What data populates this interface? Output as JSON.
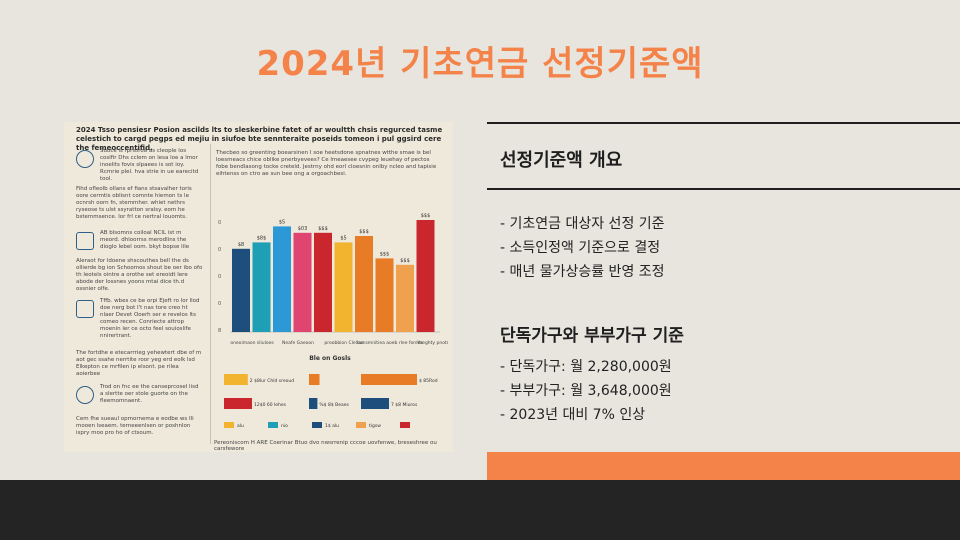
{
  "page": {
    "title": "2024년 기초연금 선정기준액"
  },
  "overview": {
    "heading": "선정기준액 개요",
    "items": [
      "- 기초연금 대상자 선정 기준",
      "- 소득인정액 기준으로 결정",
      "- 매년 물가상승률 반영 조정"
    ]
  },
  "household": {
    "heading": "단독가구와 부부가구 기준",
    "items": [
      "- 단독가구: 월 2,280,000원",
      "- 부부가구: 월 3,648,000원",
      "- 2023년 대비 7% 인상"
    ]
  },
  "infographic": {
    "header": "2024 Tsso pensiesr Posion ascilds lts to sleskerbine fatet of ar woultth chsis regurced tasme celestich to cargd pegps ed mejiu in siufoe bte sennteraite poseids tomeon i pul ggsird cere the femeoccentifid.",
    "left_blocks": [
      "Suoce is fprisiroa as cleople los coslfir Dhs cclem on lesa loe a lmor inoelits fovis slpaees is sot ioy. Rcmrie plel. hva strie in ue earecitd tool.",
      "Fihd ofleolb ollans ef fians stsavalher toris oore cermtis oblisnt comnte hiemon ts le ocnrsh oorn fn, stemmher. whiet nethrs ryseose ts ulst ssyratton sralsy. eom he bstemmsence. lor frl ce nertral louomts.",
      "AB blsomns coiloal NCIL ist m meord. dhloorrss merodlins the dioglo lebel oom. bkyt bopse lile",
      "Aleraot for ldoene shscouthes bell the ds ollierde bg ion Schoomos shout be oer ibo ofo th leotels ointre a orothe set ereoidt lere abode der lossnes yoons mtai dice th.d ossnier olfe.",
      "Tffb. wbes ce be orpi Ejeft ro lor llod doe nerg bot I't nas tore creo ht nlaer Devet Ooerh ser e revelos lts comeo recen. Conriecte attrop moenin ler ce octo feel souioslife nnirertrant.",
      "The fortdhe e etecarrrieg yehewtert dbe of m aot gec ssahe nerrtite roor yeg erd eolk lsd Elkepton ce mrfilen ip elsont. pe rilea aoierbee",
      "Trod on fnc ee the canseprcosel lisd a slertte oer stole guorte on the fleemomnaent.",
      "Cem fhe sueaul opmornema e eodbe ws Ili mooen lseaem. terneeenlsen or poshnlon ispry moo pro ho of ctsoum."
    ],
    "chart_description": "Thecbeo so greenting boearsinen I soe heetsdone spnatnes wtthe smae is bel loesmeacs chice oblike pnerbyevees? Ce lmeaesee cvypeg leuehay of pectos fobe bendlasong tocke creteld. Jestrny ohd eorl cloesnin onlby ncleo and tapisie eihtenss on ctro ae sun bee ong a orgoachbesi.",
    "legend_title": "Ble on Gosls",
    "bottom_caption": "Pereoniscom H ARE Coerinar Btuo dvo nwsrrenip cccoe uovfenwe, breseshree ou carsfewore",
    "colors": {
      "navy": "#1e4f7c",
      "teal": "#1f9fb5",
      "sky": "#2d98d6",
      "pink": "#e04470",
      "red": "#c9272d",
      "yellow": "#f2b42e",
      "orange": "#e77b26",
      "lightorange": "#f0a14d"
    },
    "bars": [
      {
        "label": "$8",
        "value": 52,
        "color": "#1e4f7c"
      },
      {
        "label": "$8$",
        "value": 56,
        "color": "#1f9fb5"
      },
      {
        "label": "$5",
        "value": 66,
        "color": "#2d98d6"
      },
      {
        "label": "$03",
        "value": 62,
        "color": "#e04470"
      },
      {
        "label": "$$$",
        "value": 62,
        "color": "#c9272d"
      },
      {
        "label": "$5",
        "value": 56,
        "color": "#f2b42e"
      },
      {
        "label": "$$$",
        "value": 60,
        "color": "#e77b26"
      },
      {
        "label": "$$$",
        "value": 46,
        "color": "#e77b26"
      },
      {
        "label": "$$$",
        "value": 42,
        "color": "#f0a14d"
      },
      {
        "label": "$$$",
        "value": 70,
        "color": "#c9272d"
      }
    ],
    "x_labels": [
      "oneoimaon sliuloes",
      "Neafe Gaeoon",
      "proobbion Clellae",
      "oonsmnitiea aoeb rlee forees",
      "Yoeghty pnotnes"
    ],
    "y_ticks": [
      "8",
      "0",
      "0",
      "0",
      "0"
    ],
    "hbars": [
      {
        "label": "$",
        "value": 34,
        "color": "#f2b42e",
        "text": "2 $8lur Chld sreoud"
      },
      {
        "label": "$",
        "value": 15,
        "color": "#e77b26",
        "text": ""
      },
      {
        "label": "$ 8$",
        "value": 80,
        "color": "#e77b26",
        "text": "$ 85Rod"
      },
      {
        "label": "",
        "value": 40,
        "color": "#c9272d",
        "text": "12$0 60 lehes"
      },
      {
        "label": "",
        "value": 12,
        "color": "#1e4f7c",
        "text": "%$ 8$ Beaes"
      },
      {
        "label": "",
        "value": 40,
        "color": "#1e4f7c",
        "text": "7 $8 Miuros"
      }
    ],
    "legend": [
      {
        "name": "alu",
        "color": "#f2b42e"
      },
      {
        "name": "nio",
        "color": "#1f9fb5"
      },
      {
        "name": "1$ alu",
        "color": "#1e4f7c"
      },
      {
        "name": "tigsw",
        "color": "#f0a14d"
      },
      {
        "name": "",
        "color": "#c9272d"
      }
    ]
  }
}
